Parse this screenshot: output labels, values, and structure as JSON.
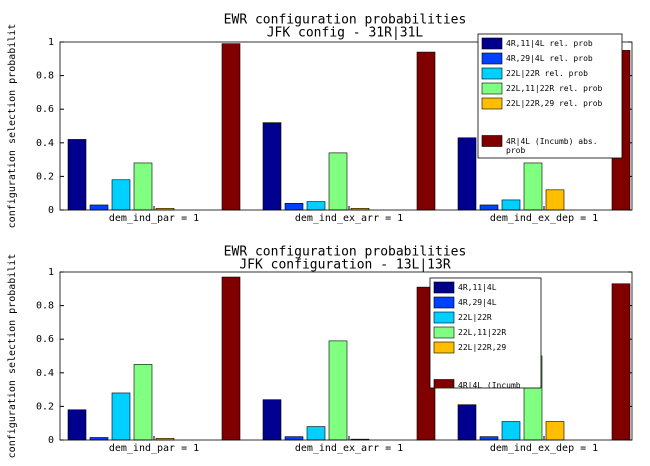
{
  "chart_data": [
    {
      "type": "bar",
      "title": "EWR configuration probabilities",
      "subtitle": "JFK config - 31R|31L",
      "y_label": "configuration selection probabilit",
      "categories": [
        "dem_ind_par = 1",
        "dem_ind_ex_arr = 1",
        "dem_ind_ex_dep = 1"
      ],
      "series": [
        {
          "name": "4R,11|4L rel. prob",
          "color": "#00008f",
          "values": [
            0.42,
            0.52,
            0.43
          ]
        },
        {
          "name": "4R,29|4L rel. prob",
          "color": "#0040ff",
          "values": [
            0.03,
            0.04,
            0.03
          ]
        },
        {
          "name": "22L|22R rel. prob",
          "color": "#00d0ff",
          "values": [
            0.18,
            0.05,
            0.06
          ]
        },
        {
          "name": "22L,11|22R rel. prob",
          "color": "#80ff80",
          "values": [
            0.28,
            0.34,
            0.28
          ]
        },
        {
          "name": "22L|22R,29 rel. prob",
          "color": "#ffbf00",
          "values": [
            0.01,
            0.01,
            0.12
          ]
        },
        {
          "name": "4R|4L (Incumb) abs. prob",
          "color": "#800000",
          "values": [
            0.99,
            0.94,
            0.95
          ]
        }
      ],
      "ylim": [
        0,
        1
      ],
      "yticks": [
        0,
        0.2,
        0.4,
        0.6,
        0.8,
        1
      ],
      "legend": "upper right"
    },
    {
      "type": "bar",
      "title": "EWR configuration probabilities",
      "subtitle": "JFK configuration - 13L|13R",
      "y_label": "configuration selection probabilit",
      "categories": [
        "dem_ind_par = 1",
        "dem_ind_ex_arr = 1",
        "dem_ind_ex_dep = 1"
      ],
      "series": [
        {
          "name": "4R,11|4L",
          "color": "#00008f",
          "values": [
            0.18,
            0.24,
            0.21
          ]
        },
        {
          "name": "4R,29|4L",
          "color": "#0040ff",
          "values": [
            0.015,
            0.02,
            0.02
          ]
        },
        {
          "name": "22L|22R",
          "color": "#00d0ff",
          "values": [
            0.28,
            0.08,
            0.11
          ]
        },
        {
          "name": "22L,11|22R",
          "color": "#80ff80",
          "values": [
            0.45,
            0.59,
            0.5
          ]
        },
        {
          "name": "22L|22R,29",
          "color": "#ffbf00",
          "values": [
            0.01,
            0.005,
            0.11
          ]
        },
        {
          "name": "4R|4L (Incumb",
          "color": "#800000",
          "values": [
            0.97,
            0.91,
            0.93
          ]
        }
      ],
      "ylim": [
        0,
        1
      ],
      "yticks": [
        0,
        0.2,
        0.4,
        0.6,
        0.8,
        1
      ],
      "legend": "upper right"
    }
  ]
}
